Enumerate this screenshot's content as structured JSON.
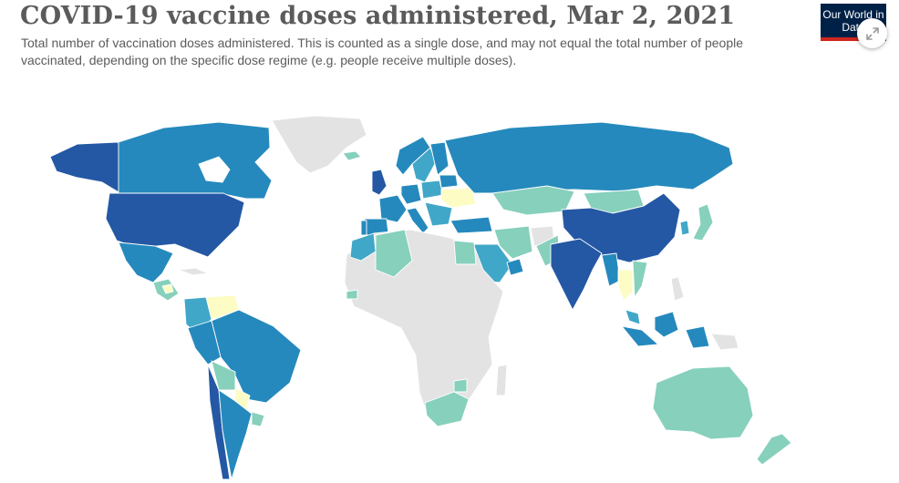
{
  "header": {
    "title": "COVID-19 vaccine doses administered, Mar 2, 2021",
    "subtitle": "Total number of vaccination doses administered. This is counted as a single dose, and may not equal the total number of people vaccinated, depending on the specific dose regime (e.g. people receive multiple doses)."
  },
  "logo": {
    "text": "Our World in Data"
  },
  "colors": {
    "very_high": "#2458a4",
    "high": "#2589bd",
    "medium": "#41a7c8",
    "low": "#86d0bc",
    "very_low": "#fdfcc4",
    "no_data": "#e3e3e3"
  },
  "icons": {
    "expand": "expand-arrows-icon"
  }
}
